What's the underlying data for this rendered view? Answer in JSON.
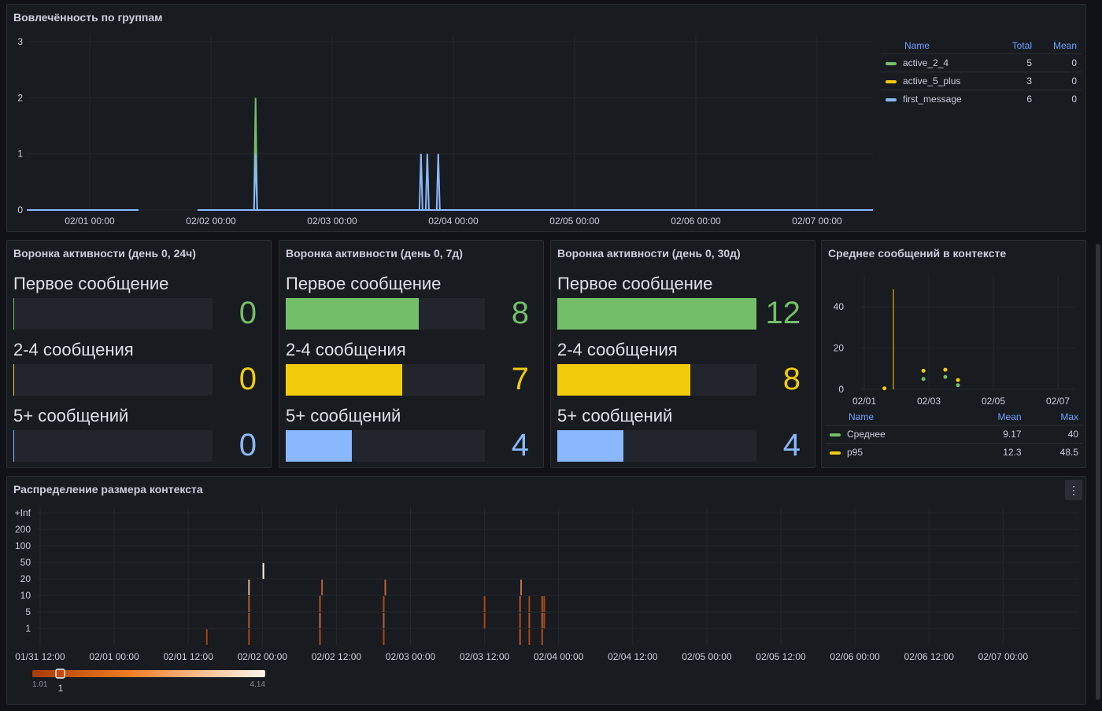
{
  "colors": {
    "green": "#73bf69",
    "yellow": "#f2cc0c",
    "blue": "#8ab8ff"
  },
  "engagement": {
    "title": "Вовлечённость по группам",
    "y_ticks": [
      "0",
      "1",
      "2",
      "3"
    ],
    "x_ticks": [
      "02/01 00:00",
      "02/02 00:00",
      "02/03 00:00",
      "02/04 00:00",
      "02/05 00:00",
      "02/06 00:00",
      "02/07 00:00"
    ],
    "legend": {
      "headers": [
        "Name",
        "Total",
        "Mean"
      ],
      "rows": [
        {
          "name": "active_2_4",
          "total": "5",
          "mean": "0",
          "color": "#73bf69"
        },
        {
          "name": "active_5_plus",
          "total": "3",
          "mean": "0",
          "color": "#f2cc0c"
        },
        {
          "name": "first_message",
          "total": "6",
          "mean": "0",
          "color": "#8ab8ff"
        }
      ]
    },
    "spikes": [
      {
        "series": "active_2_4",
        "time": "02/02 08:50",
        "value": 2
      },
      {
        "series": "first_message",
        "time": "02/02 08:50",
        "value": 1
      },
      {
        "series": "first_message",
        "time": "02/03 17:35",
        "value": 1
      },
      {
        "series": "first_message",
        "time": "02/03 18:50",
        "value": 1
      },
      {
        "series": "first_message",
        "time": "02/03 21:00",
        "value": 1
      }
    ],
    "gaps": [
      {
        "from": "02/01 09:40",
        "to": "02/01 21:20"
      }
    ]
  },
  "funnels": [
    {
      "title": "Воронка активности (день 0, 24ч)",
      "items": [
        {
          "label": "Первое сообщение",
          "value": "0"
        },
        {
          "label": "2-4 сообщения",
          "value": "0"
        },
        {
          "label": "5+ сообщений",
          "value": "0"
        }
      ]
    },
    {
      "title": "Воронка активности (день 0, 7д)",
      "items": [
        {
          "label": "Первое сообщение",
          "value": "8"
        },
        {
          "label": "2-4 сообщения",
          "value": "7"
        },
        {
          "label": "5+ сообщений",
          "value": "4"
        }
      ]
    },
    {
      "title": "Воронка активности (день 0, 30д)",
      "items": [
        {
          "label": "Первое сообщение",
          "value": "12"
        },
        {
          "label": "2-4 сообщения",
          "value": "8"
        },
        {
          "label": "5+ сообщений",
          "value": "4"
        }
      ]
    }
  ],
  "funnel_max": 12,
  "context_mean": {
    "title": "Среднее сообщений в контексте",
    "y_ticks": [
      "0",
      "20",
      "40"
    ],
    "x_ticks": [
      "02/01",
      "02/03",
      "02/05",
      "02/07"
    ],
    "legend": {
      "headers": [
        "Name",
        "Mean",
        "Max"
      ],
      "rows": [
        {
          "name": "Среднее",
          "mean": "9.17",
          "max": "40",
          "color": "#73bf69"
        },
        {
          "name": "p95",
          "mean": "12.3",
          "max": "48.5",
          "color": "#f2cc0c"
        }
      ]
    },
    "points": [
      {
        "series": "p95",
        "time": "02/01 15:00",
        "value": 0.5
      },
      {
        "series": "p95",
        "time": "02/02 20:00",
        "value": 9
      },
      {
        "series": "Среднее",
        "time": "02/02 20:00",
        "value": 5
      },
      {
        "series": "p95",
        "time": "02/03 12:15",
        "value": 9.5
      },
      {
        "series": "Среднее",
        "time": "02/03 12:15",
        "value": 6
      },
      {
        "series": "p95",
        "time": "02/03 21:40",
        "value": 4.5
      },
      {
        "series": "Среднее",
        "time": "02/03 21:40",
        "value": 2
      }
    ],
    "lines": [
      {
        "series": "p95",
        "time": "02/01 21:40",
        "from": 0,
        "to": 48.5
      }
    ]
  },
  "heatmap": {
    "title": "Распределение размера контекста",
    "menu_icon": "kebab-menu-icon",
    "y_ticks": [
      "1",
      "5",
      "10",
      "20",
      "50",
      "100",
      "200",
      "+Inf"
    ],
    "x_ticks": [
      "01/31 12:00",
      "02/01 00:00",
      "02/01 12:00",
      "02/02 00:00",
      "02/02 12:00",
      "02/03 00:00",
      "02/03 12:00",
      "02/04 00:00",
      "02/04 12:00",
      "02/05 00:00",
      "02/05 12:00",
      "02/06 00:00",
      "02/06 12:00",
      "02/07 00:00"
    ],
    "scale": {
      "min": "1.01",
      "max": "4.14",
      "marker": "1",
      "color_low": "#a83a05",
      "color_high": "#fff5eb"
    },
    "cells": [
      {
        "time": "02/01 15:00",
        "bucket": 0,
        "count": 1.1
      },
      {
        "time": "02/01 21:50",
        "bucket": 0,
        "count": 1.2
      },
      {
        "time": "02/01 21:50",
        "bucket": 1,
        "count": 1.5
      },
      {
        "time": "02/01 21:50",
        "bucket": 2,
        "count": 1.5
      },
      {
        "time": "02/01 21:50",
        "bucket": 3,
        "count": 3
      },
      {
        "time": "02/02 00:10",
        "bucket": 4,
        "count": 4.14
      },
      {
        "time": "02/02 09:20",
        "bucket": 0,
        "count": 1.3
      },
      {
        "time": "02/02 09:20",
        "bucket": 1,
        "count": 1.8
      },
      {
        "time": "02/02 09:20",
        "bucket": 2,
        "count": 1.4
      },
      {
        "time": "02/02 09:40",
        "bucket": 3,
        "count": 1.6
      },
      {
        "time": "02/02 19:40",
        "bucket": 0,
        "count": 1.2
      },
      {
        "time": "02/02 19:40",
        "bucket": 1,
        "count": 1.6
      },
      {
        "time": "02/02 19:40",
        "bucket": 2,
        "count": 1.3
      },
      {
        "time": "02/02 19:55",
        "bucket": 3,
        "count": 1.7
      },
      {
        "time": "02/03 12:00",
        "bucket": 1,
        "count": 1.2
      },
      {
        "time": "02/03 12:00",
        "bucket": 2,
        "count": 1.2
      },
      {
        "time": "02/03 17:45",
        "bucket": 0,
        "count": 1.5
      },
      {
        "time": "02/03 17:45",
        "bucket": 1,
        "count": 1.3
      },
      {
        "time": "02/03 17:45",
        "bucket": 2,
        "count": 1.4
      },
      {
        "time": "02/03 17:55",
        "bucket": 3,
        "count": 1.9
      },
      {
        "time": "02/03 19:15",
        "bucket": 0,
        "count": 1.2
      },
      {
        "time": "02/03 19:15",
        "bucket": 1,
        "count": 1.5
      },
      {
        "time": "02/03 19:15",
        "bucket": 2,
        "count": 1.2
      },
      {
        "time": "02/03 21:20",
        "bucket": 0,
        "count": 1.3
      },
      {
        "time": "02/03 21:20",
        "bucket": 1,
        "count": 1.6
      },
      {
        "time": "02/03 21:20",
        "bucket": 2,
        "count": 1.4
      },
      {
        "time": "02/03 21:40",
        "bucket": 1,
        "count": 1.2
      },
      {
        "time": "02/03 21:40",
        "bucket": 2,
        "count": 1.2
      }
    ]
  }
}
